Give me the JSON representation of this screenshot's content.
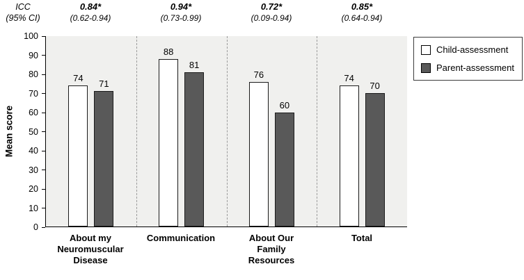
{
  "chart_data": {
    "type": "bar",
    "title": "",
    "xlabel": "",
    "ylabel": "Mean score",
    "ylim": [
      0,
      100
    ],
    "ytick_step": 10,
    "grid": "dashed-vertical-category-separators",
    "plot_background": "#f0f0ee",
    "legend_position": "top-right",
    "categories": [
      "About my\nNeuromuscular\nDisease",
      "Communication",
      "About Our\nFamily\nResources",
      "Total"
    ],
    "series": [
      {
        "name": "Child-assessment",
        "color": "#ffffff",
        "values": [
          74,
          88,
          76,
          74
        ]
      },
      {
        "name": "Parent-assessment",
        "color": "#595959",
        "values": [
          71,
          81,
          60,
          70
        ]
      }
    ],
    "annotations": {
      "header_line1": "ICC",
      "header_line2": "(95% CI)",
      "icc_values": [
        "0.84*",
        "0.94*",
        "0.72*",
        "0.85*"
      ],
      "ci_values": [
        "(0.62-0.94)",
        "(0.73-0.99)",
        "(0.09-0.94)",
        "(0.64-0.94)"
      ]
    }
  }
}
